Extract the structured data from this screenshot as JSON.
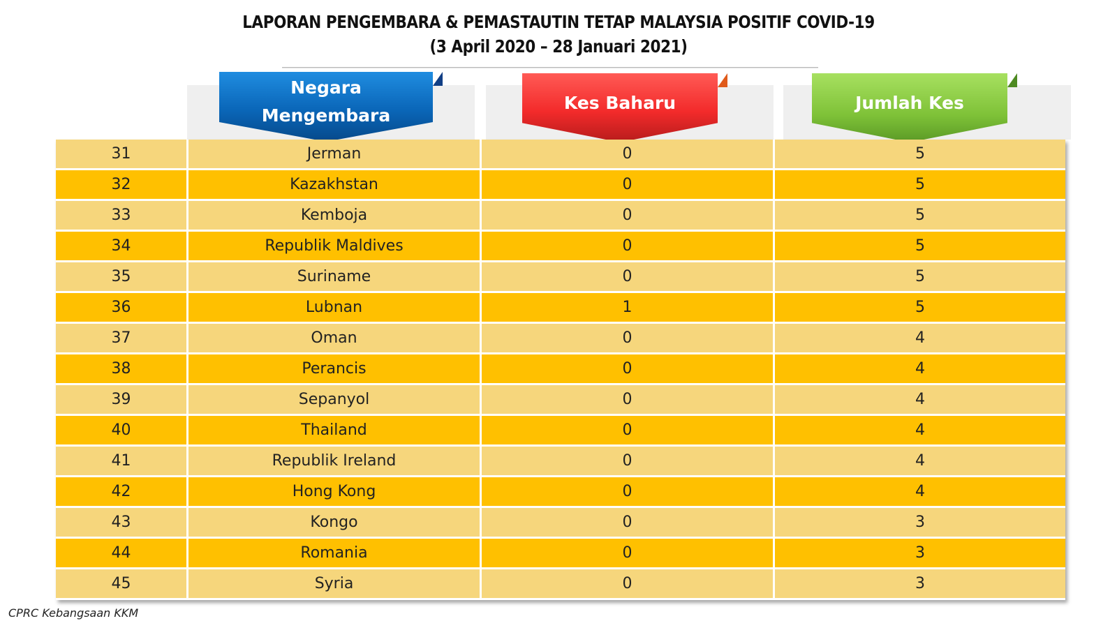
{
  "title": {
    "line1": "LAPORAN PENGEMBARA & PEMASTAUTIN TETAP MALAYSIA POSITIF COVID-19",
    "line2": "(3 April 2020 –  28 Januari 2021)"
  },
  "headers": {
    "negara_line1": "Negara",
    "negara_line2": "Mengembara",
    "kes_baharu": "Kes Baharu",
    "jumlah_kes": "Jumlah Kes"
  },
  "colors": {
    "odd_row": "#f6d67c",
    "even_row": "#ffc000",
    "negara_banner": "#0a66b8",
    "kes_banner": "#f32b2b",
    "jumlah_banner": "#7fc238"
  },
  "rows": [
    {
      "no": "31",
      "country": "Jerman",
      "kes_baharu": "0",
      "jumlah_kes": "5"
    },
    {
      "no": "32",
      "country": "Kazakhstan",
      "kes_baharu": "0",
      "jumlah_kes": "5"
    },
    {
      "no": "33",
      "country": "Kemboja",
      "kes_baharu": "0",
      "jumlah_kes": "5"
    },
    {
      "no": "34",
      "country": "Republik Maldives",
      "kes_baharu": "0",
      "jumlah_kes": "5"
    },
    {
      "no": "35",
      "country": "Suriname",
      "kes_baharu": "0",
      "jumlah_kes": "5"
    },
    {
      "no": "36",
      "country": "Lubnan",
      "kes_baharu": "1",
      "jumlah_kes": "5"
    },
    {
      "no": "37",
      "country": "Oman",
      "kes_baharu": "0",
      "jumlah_kes": "4"
    },
    {
      "no": "38",
      "country": "Perancis",
      "kes_baharu": "0",
      "jumlah_kes": "4"
    },
    {
      "no": "39",
      "country": "Sepanyol",
      "kes_baharu": "0",
      "jumlah_kes": "4"
    },
    {
      "no": "40",
      "country": "Thailand",
      "kes_baharu": "0",
      "jumlah_kes": "4"
    },
    {
      "no": "41",
      "country": "Republik Ireland",
      "kes_baharu": "0",
      "jumlah_kes": "4"
    },
    {
      "no": "42",
      "country": "Hong Kong",
      "kes_baharu": "0",
      "jumlah_kes": "4"
    },
    {
      "no": "43",
      "country": "Kongo",
      "kes_baharu": "0",
      "jumlah_kes": "3"
    },
    {
      "no": "44",
      "country": "Romania",
      "kes_baharu": "0",
      "jumlah_kes": "3"
    },
    {
      "no": "45",
      "country": "Syria",
      "kes_baharu": "0",
      "jumlah_kes": "3"
    }
  ],
  "footer": "CPRC Kebangsaan KKM"
}
